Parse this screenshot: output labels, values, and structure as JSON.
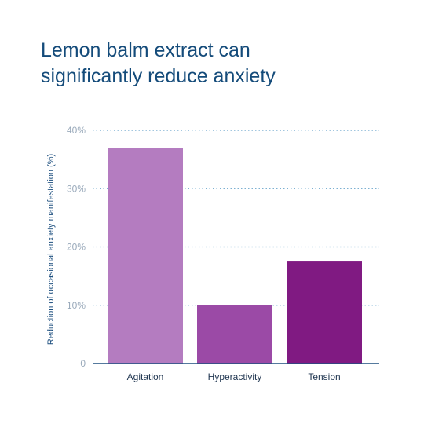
{
  "chart_data": {
    "type": "bar",
    "title_lines": [
      "Lemon balm extract can",
      "significantly reduce anxiety"
    ],
    "xlabel": "",
    "ylabel": "Reduction of occasional anxiety manifestation (%)",
    "categories": [
      "Agitation",
      "Hyperactivity",
      "Tension"
    ],
    "values": [
      37,
      10,
      17.5
    ],
    "ylim": [
      0,
      40
    ],
    "yticks": [
      0,
      10,
      20,
      30,
      40
    ],
    "ytick_labels": [
      "0",
      "10%",
      "20%",
      "30%",
      "40%"
    ],
    "grid": "horizontal dotted",
    "colors": {
      "title": "#144b7a",
      "bars": [
        "#b47cc0",
        "#9b4aa6",
        "#801a82"
      ],
      "grid": "#6aa5cc",
      "axis": "#1d4f7f",
      "tick_text": "#9aaabb"
    }
  }
}
